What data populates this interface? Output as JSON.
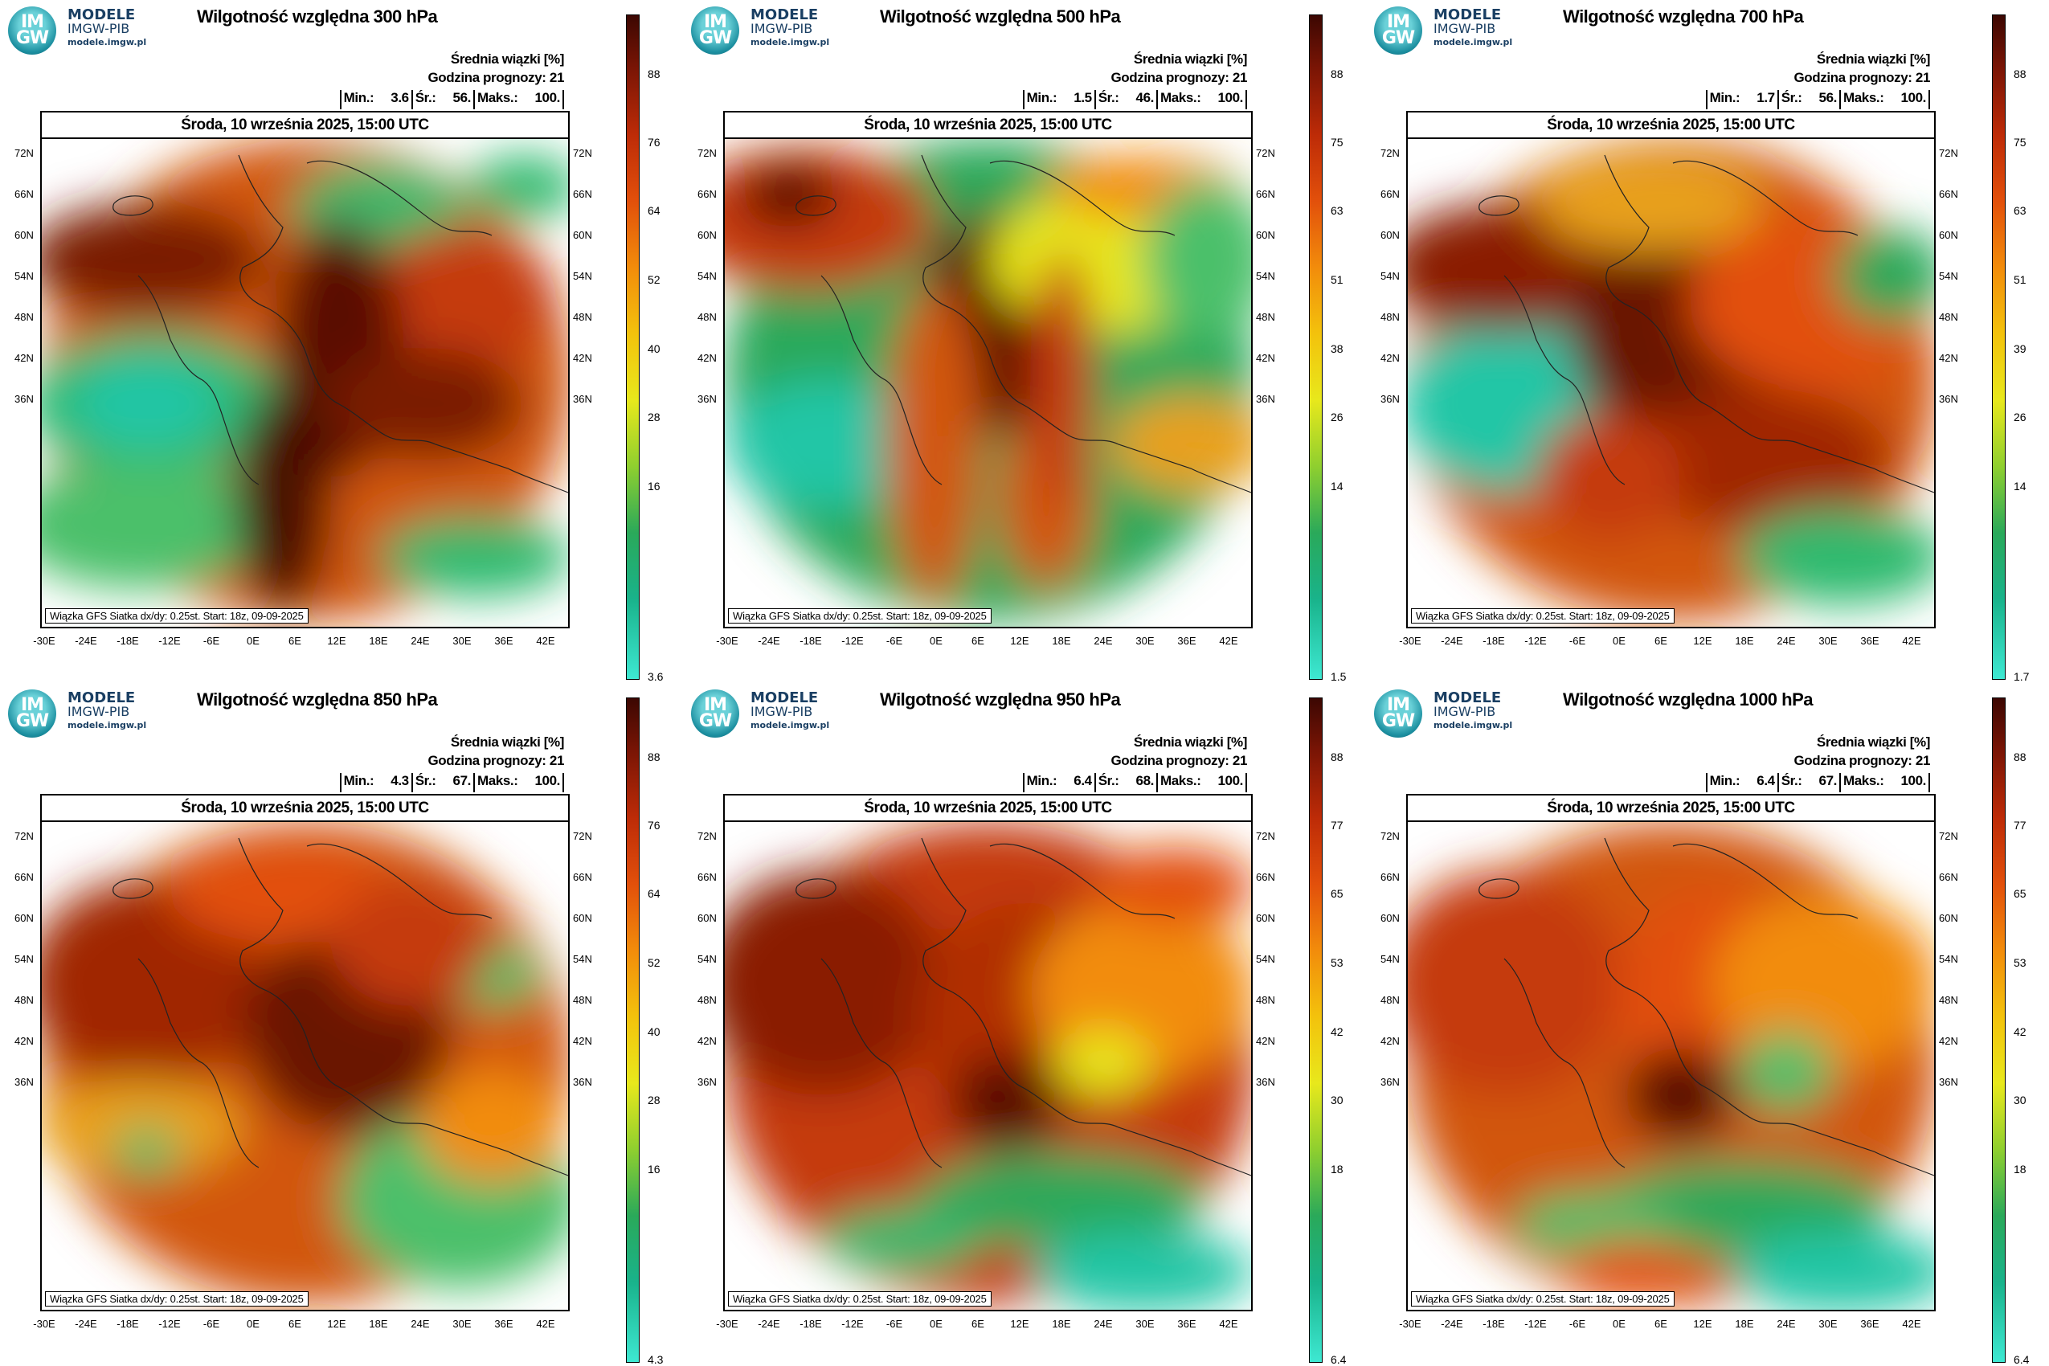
{
  "logo": {
    "mark": "IM GW",
    "line1": "MODELE",
    "line2": "IMGW-PIB",
    "line3": "modele.imgw.pl"
  },
  "common": {
    "mean_label": "Średnia wiązki [%]",
    "forecast_hour_label": "Godzina prognozy: 21",
    "min_label": "Min.:",
    "avg_label": "Śr.:",
    "max_label": "Maks.:",
    "date": "Środa, 10 września 2025, 15:00 UTC",
    "footer": "Wiązka GFS Siatka dx/dy: 0.25st. Start: 18z, 09-09-2025",
    "lat_ticks": [
      "72N",
      "66N",
      "60N",
      "54N",
      "48N",
      "42N",
      "36N"
    ],
    "lon_ticks": [
      "-30E",
      "-24E",
      "-18E",
      "-12E",
      "-6E",
      "0E",
      "6E",
      "12E",
      "18E",
      "24E",
      "30E",
      "36E",
      "42E"
    ]
  },
  "chart_data": [
    {
      "type": "heatmap",
      "title": "Wilgotność względna 300 hPa",
      "min": "3.6",
      "avg": "56.",
      "max": "100.",
      "colorbar_ticks": [
        "88",
        "76",
        "64",
        "52",
        "40",
        "28",
        "16",
        "3.6"
      ],
      "colors": {
        "dry": "#20c6a6",
        "mid": "#f2c20f",
        "wet": "#7a1505"
      }
    },
    {
      "type": "heatmap",
      "title": "Wilgotność względna 500 hPa",
      "min": "1.5",
      "avg": "46.",
      "max": "100.",
      "colorbar_ticks": [
        "88",
        "75",
        "63",
        "51",
        "38",
        "26",
        "14",
        "1.5"
      ],
      "colors": {
        "dry": "#20c6a6",
        "mid": "#f2c20f",
        "wet": "#7a1505"
      }
    },
    {
      "type": "heatmap",
      "title": "Wilgotność względna 700 hPa",
      "min": "1.7",
      "avg": "56.",
      "max": "100.",
      "colorbar_ticks": [
        "88",
        "75",
        "63",
        "51",
        "39",
        "26",
        "14",
        "1.7"
      ],
      "colors": {
        "dry": "#20c6a6",
        "mid": "#f2c20f",
        "wet": "#7a1505"
      }
    },
    {
      "type": "heatmap",
      "title": "Wilgotność względna 850 hPa",
      "min": "4.3",
      "avg": "67.",
      "max": "100.",
      "colorbar_ticks": [
        "88",
        "76",
        "64",
        "52",
        "40",
        "28",
        "16",
        "4.3"
      ],
      "colors": {
        "dry": "#20c6a6",
        "mid": "#f2c20f",
        "wet": "#7a1505"
      }
    },
    {
      "type": "heatmap",
      "title": "Wilgotność względna 950 hPa",
      "min": "6.4",
      "avg": "68.",
      "max": "100.",
      "colorbar_ticks": [
        "88",
        "77",
        "65",
        "53",
        "42",
        "30",
        "18",
        "6.4"
      ],
      "colors": {
        "dry": "#20c6a6",
        "mid": "#f2c20f",
        "wet": "#7a1505"
      }
    },
    {
      "type": "heatmap",
      "title": "Wilgotność względna 1000 hPa",
      "min": "6.4",
      "avg": "67.",
      "max": "100.",
      "colorbar_ticks": [
        "88",
        "77",
        "65",
        "53",
        "42",
        "30",
        "18",
        "6.4"
      ],
      "colors": {
        "dry": "#20c6a6",
        "mid": "#f2c20f",
        "wet": "#7a1505"
      }
    }
  ]
}
